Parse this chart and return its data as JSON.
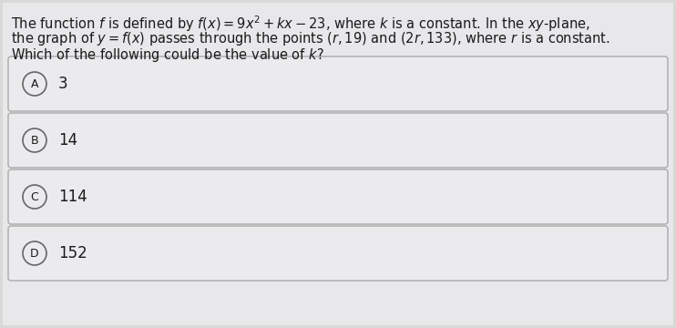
{
  "background_color": "#d8d8d8",
  "page_color": "#e8e8eb",
  "question_lines": [
    "The function $f$ is defined by $f(x) = 9x^2 + kx - 23$, where $k$ is a constant. In the $xy$-plane,",
    "the graph of $y = f(x)$ passes through the points $(r, 19)$ and $(2r, 133)$, where $r$ is a constant.",
    "Which of the following could be the value of $k$?"
  ],
  "choices": [
    {
      "label": "A",
      "value": "3"
    },
    {
      "label": "B",
      "value": "14"
    },
    {
      "label": "C",
      "value": "114"
    },
    {
      "label": "D",
      "value": "152"
    }
  ],
  "box_bg_color": "#ebebee",
  "box_edge_color": "#aaaaaa",
  "text_color": "#1a1a1a",
  "circle_face_color": "#ebebee",
  "circle_edge_color": "#666666",
  "font_size_question": 10.5,
  "font_size_choice": 12,
  "font_size_label": 9
}
